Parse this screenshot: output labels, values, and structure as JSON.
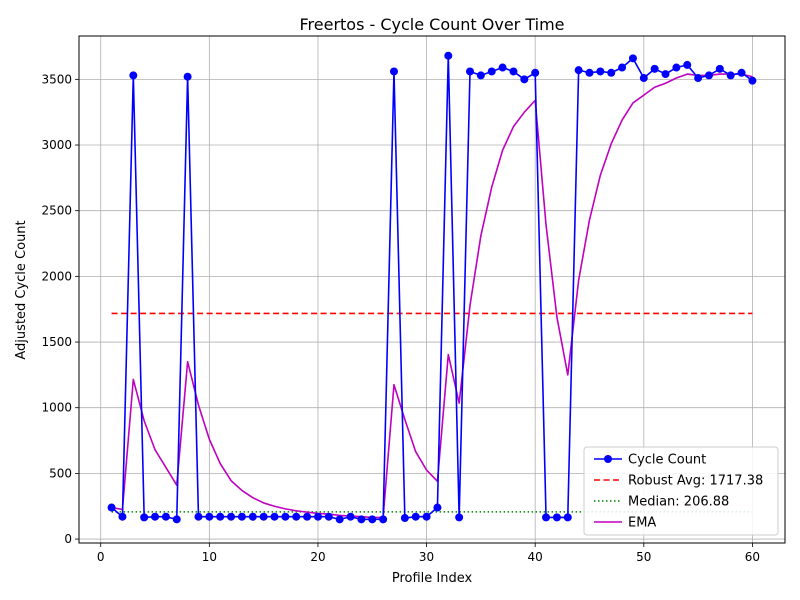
{
  "chart_data": {
    "type": "line",
    "title": "Freertos - Cycle Count Over Time",
    "xlabel": "Profile Index",
    "ylabel": "Adjusted Cycle Count",
    "xlim": [
      -2,
      63
    ],
    "ylim": [
      -30,
      3830
    ],
    "xticks": [
      0,
      10,
      20,
      30,
      40,
      50,
      60
    ],
    "yticks": [
      0,
      500,
      1000,
      1500,
      2000,
      2500,
      3000,
      3500
    ],
    "grid": true,
    "legend_position": "bottom-right",
    "x": [
      1,
      2,
      3,
      4,
      5,
      6,
      7,
      8,
      9,
      10,
      11,
      12,
      13,
      14,
      15,
      16,
      17,
      18,
      19,
      20,
      21,
      22,
      23,
      24,
      25,
      26,
      27,
      28,
      29,
      30,
      31,
      32,
      33,
      34,
      35,
      36,
      37,
      38,
      39,
      40,
      41,
      42,
      43,
      44,
      45,
      46,
      47,
      48,
      49,
      50,
      51,
      52,
      53,
      54,
      55,
      56,
      57,
      58,
      59,
      60
    ],
    "series": [
      {
        "name": "Cycle Count",
        "style": "line-marker",
        "color": "#0000ff",
        "values": [
          240,
          170,
          3530,
          165,
          170,
          170,
          150,
          3520,
          170,
          170,
          170,
          170,
          170,
          170,
          170,
          170,
          170,
          170,
          170,
          170,
          170,
          150,
          170,
          150,
          150,
          150,
          3560,
          160,
          170,
          170,
          240,
          3680,
          165,
          3560,
          3530,
          3560,
          3590,
          3560,
          3500,
          3550,
          165,
          165,
          165,
          3570,
          3550,
          3560,
          3550,
          3590,
          3660,
          3510,
          3580,
          3540,
          3590,
          3610,
          3510,
          3530,
          3580,
          3530,
          3550,
          3490
        ]
      },
      {
        "name": "Robust Avg: 1717.38",
        "style": "dashed",
        "color": "#ff0000",
        "constant": 1717.38
      },
      {
        "name": "Median: 206.88",
        "style": "dotted",
        "color": "#008000",
        "constant": 206.88
      },
      {
        "name": "EMA",
        "style": "line",
        "color": "#bf00bf",
        "values": [
          240,
          225,
          1215,
          900,
          680,
          545,
          410,
          1350,
          1020,
          760,
          575,
          445,
          370,
          315,
          275,
          250,
          230,
          215,
          205,
          195,
          190,
          180,
          175,
          170,
          165,
          165,
          1175,
          910,
          665,
          525,
          440,
          1405,
          1035,
          1780,
          2310,
          2680,
          2960,
          3140,
          3250,
          3340,
          2390,
          1690,
          1250,
          1970,
          2430,
          2770,
          3010,
          3190,
          3320,
          3380,
          3440,
          3470,
          3510,
          3540,
          3530,
          3530,
          3540,
          3540,
          3540,
          3520
        ]
      }
    ]
  }
}
